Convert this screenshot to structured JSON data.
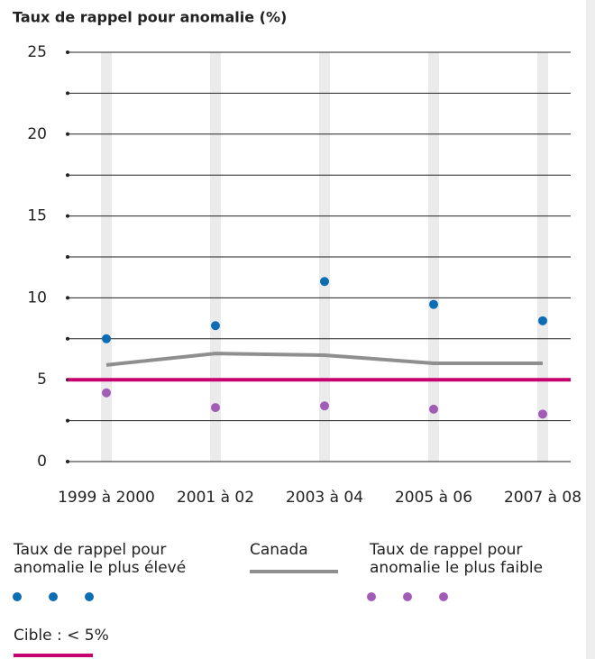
{
  "chart_data": {
    "type": "line",
    "title": "Taux de rappel pour anomalie (%)",
    "categories": [
      "1999 à 2000",
      "2001 à 02",
      "2003 à 04",
      "2005 à 06",
      "2007 à 08"
    ],
    "series": [
      {
        "name": "Taux de rappel pour anomalie le plus élevé",
        "color": "#0b6db3",
        "style": "markers",
        "values": [
          7.5,
          8.3,
          11.0,
          9.6,
          8.6
        ]
      },
      {
        "name": "Canada",
        "color": "#8f8f8f",
        "style": "line",
        "values": [
          5.9,
          6.6,
          6.5,
          6.0,
          6.0
        ]
      },
      {
        "name": "Taux de rappel pour anomalie le plus faible",
        "color": "#a15cb5",
        "style": "markers",
        "values": [
          4.2,
          3.3,
          3.4,
          3.2,
          2.9
        ]
      }
    ],
    "target": {
      "label": "Cible : < 5%",
      "value": 5,
      "color": "#c5006e"
    },
    "ylim": [
      0,
      25
    ],
    "yticks": [
      0,
      5,
      10,
      15,
      20,
      25
    ],
    "grid": true
  }
}
